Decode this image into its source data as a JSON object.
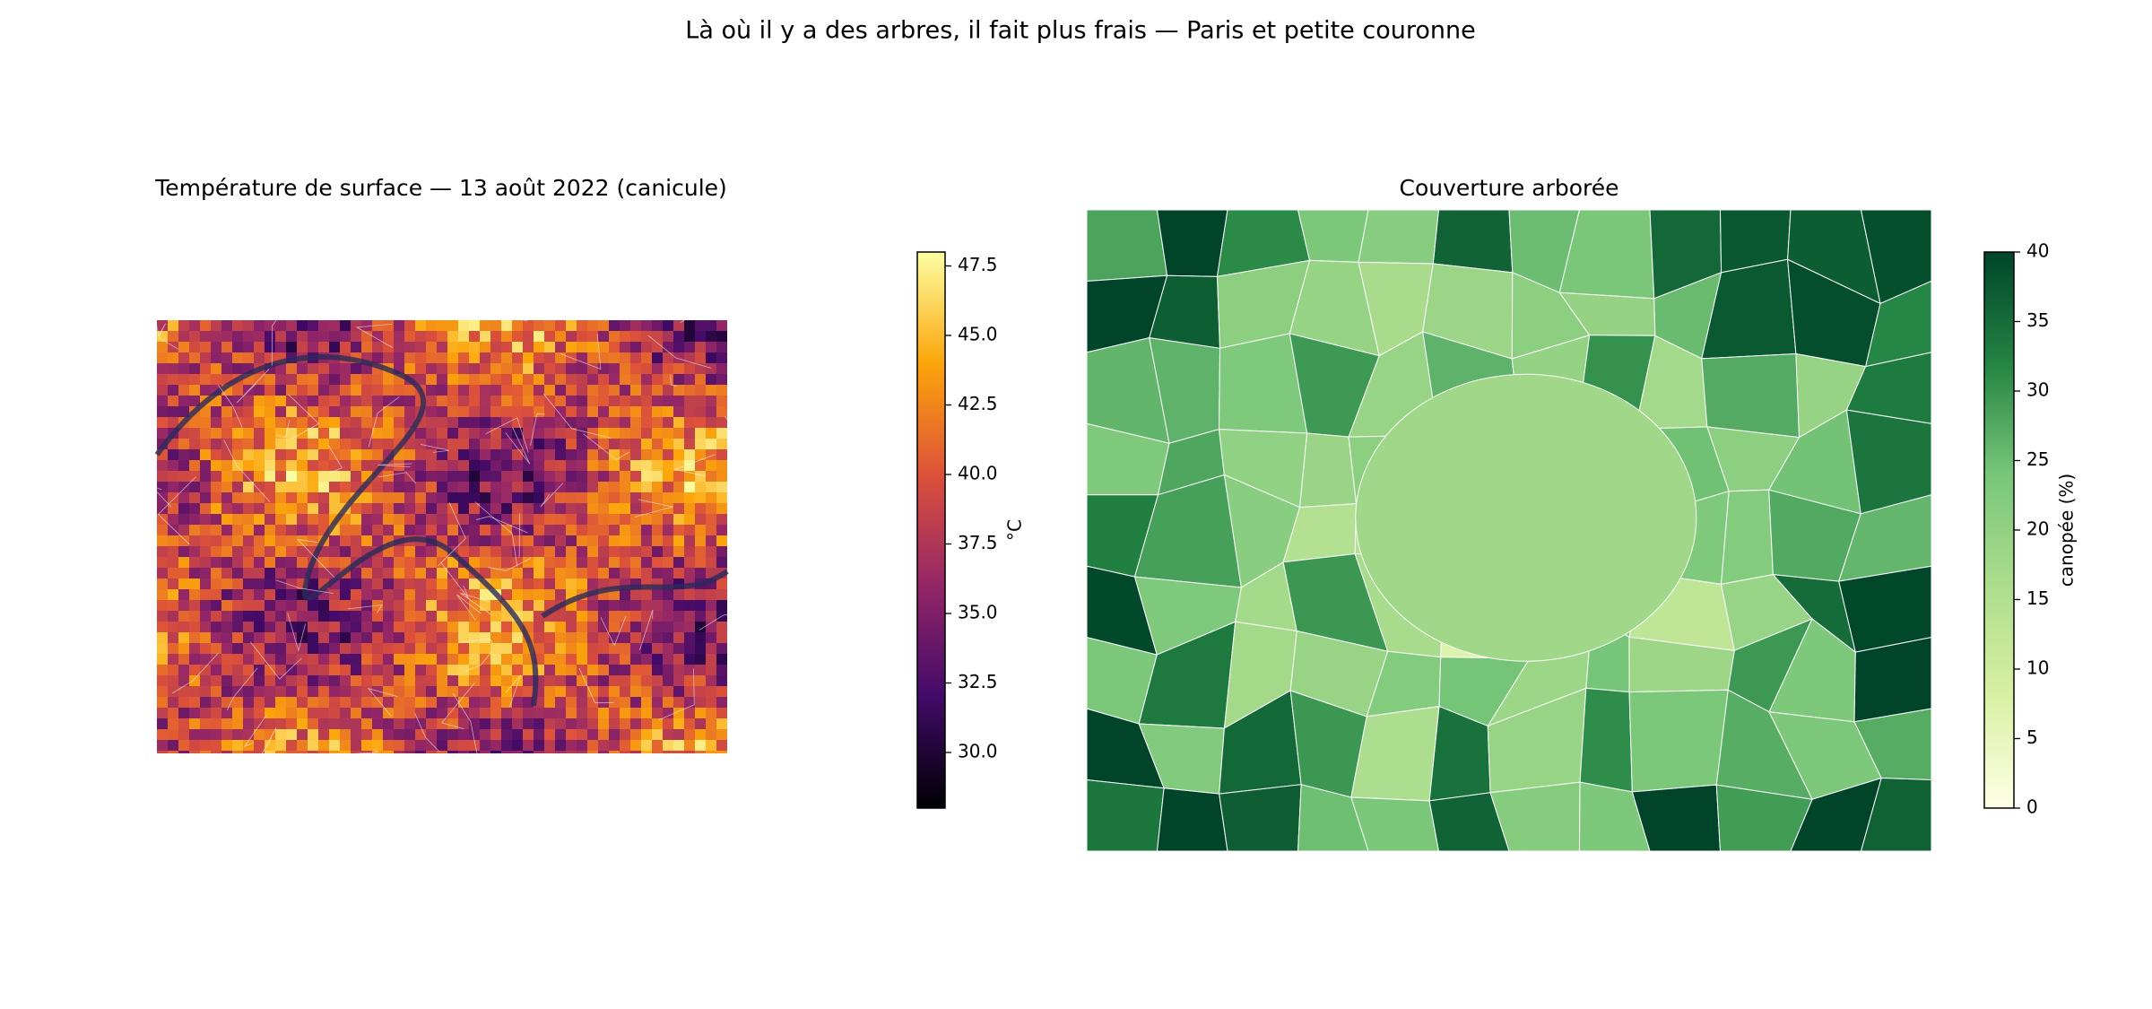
{
  "title": "Là où il y a des arbres, il fait plus frais — Paris et petite couronne",
  "chart_data": [
    {
      "type": "heatmap",
      "title": "Température de surface — 13 août 2022 (canicule)",
      "colormap": "inferno",
      "colorbar": {
        "label": "°C",
        "lim": [
          28,
          48
        ],
        "ticks": [
          {
            "value": 30,
            "label": "30.0"
          },
          32.5,
          {
            "value": 35,
            "label": "35.0"
          },
          37.5,
          {
            "value": 40,
            "label": "40.0"
          },
          42.5,
          {
            "value": 45,
            "label": "45.0"
          },
          47.5
        ]
      }
    },
    {
      "type": "choropleth",
      "title": "Couverture arborée",
      "colormap": "YlGn",
      "colorbar": {
        "label": "canopée (%)",
        "lim": [
          0,
          40
        ],
        "ticks": [
          0,
          5,
          10,
          15,
          20,
          25,
          30,
          35,
          40
        ]
      }
    }
  ]
}
